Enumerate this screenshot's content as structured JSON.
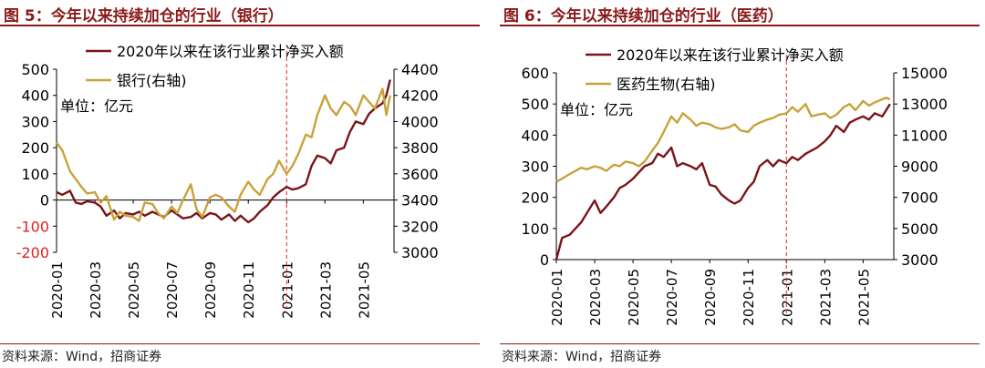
{
  "panels": [
    {
      "title": "图 5：今年以来持续加仓的行业（银行）",
      "source": "资料来源：Wind，招商证券",
      "unit_label": "单位：亿元"
    },
    {
      "title": "图 6：今年以来持续加仓的行业（医药）",
      "source": "资料来源：Wind，招商证券",
      "unit_label": "单位：亿元"
    }
  ],
  "colors": {
    "primary": "#7b1418",
    "secondary": "#c8a23a",
    "negative_tick": "#e02020",
    "marker": "#e02020",
    "title": "#8b1a1a"
  },
  "chart_data": [
    {
      "type": "line",
      "x_ticks": [
        "2020-01",
        "2020-03",
        "2020-05",
        "2020-07",
        "2020-09",
        "2020-11",
        "2021-01",
        "2021-03",
        "2021-05"
      ],
      "x_range": [
        0,
        17.6
      ],
      "marker_x": 12,
      "legend": {
        "placement": "top-left",
        "entries": [
          "2020年以来在该行业累计净买入额",
          "银行(右轴)"
        ]
      },
      "y_left": {
        "range": [
          -200,
          500
        ],
        "ticks": [
          -200,
          -100,
          0,
          100,
          200,
          300,
          400,
          500
        ]
      },
      "y_right": {
        "range": [
          3000,
          4400
        ],
        "ticks": [
          3000,
          3200,
          3400,
          3600,
          3800,
          4000,
          4200,
          4400
        ]
      },
      "series": [
        {
          "name": "2020年以来在该行业累计净买入额",
          "axis": "left",
          "x": [
            0,
            0.3,
            0.7,
            1.0,
            1.3,
            1.6,
            2.0,
            2.3,
            2.6,
            3.0,
            3.3,
            3.6,
            4.0,
            4.3,
            4.6,
            5.0,
            5.3,
            5.6,
            6.0,
            6.3,
            6.6,
            7.0,
            7.3,
            7.6,
            8.0,
            8.3,
            8.6,
            9.0,
            9.3,
            9.6,
            10.0,
            10.3,
            10.6,
            11.0,
            11.3,
            11.6,
            12.0,
            12.3,
            12.6,
            13.0,
            13.3,
            13.6,
            14.0,
            14.3,
            14.6,
            15.0,
            15.3,
            15.6,
            16.0,
            16.3,
            16.6,
            17.0,
            17.2,
            17.4
          ],
          "y": [
            30,
            20,
            35,
            -10,
            -15,
            -5,
            -10,
            -25,
            -60,
            -40,
            -70,
            -50,
            -55,
            -45,
            -60,
            -45,
            -55,
            -65,
            -40,
            -55,
            -70,
            -65,
            -50,
            -70,
            -50,
            -55,
            -75,
            -55,
            -80,
            -60,
            -85,
            -70,
            -45,
            -20,
            10,
            30,
            50,
            40,
            45,
            60,
            130,
            170,
            160,
            140,
            190,
            200,
            260,
            300,
            290,
            330,
            350,
            370,
            400,
            460
          ]
        },
        {
          "name": "银行(右轴)",
          "axis": "right",
          "x": [
            0,
            0.3,
            0.7,
            1.0,
            1.3,
            1.6,
            2.0,
            2.3,
            2.6,
            3.0,
            3.3,
            3.6,
            4.0,
            4.3,
            4.6,
            5.0,
            5.3,
            5.6,
            6.0,
            6.3,
            6.6,
            7.0,
            7.3,
            7.6,
            8.0,
            8.3,
            8.6,
            9.0,
            9.3,
            9.6,
            10.0,
            10.3,
            10.6,
            11.0,
            11.3,
            11.6,
            12.0,
            12.3,
            12.6,
            13.0,
            13.3,
            13.6,
            14.0,
            14.3,
            14.6,
            15.0,
            15.3,
            15.6,
            16.0,
            16.3,
            16.6,
            17.0,
            17.2,
            17.4
          ],
          "y": [
            3840,
            3780,
            3620,
            3560,
            3500,
            3450,
            3460,
            3380,
            3430,
            3250,
            3310,
            3280,
            3270,
            3240,
            3380,
            3370,
            3300,
            3260,
            3350,
            3300,
            3400,
            3520,
            3330,
            3270,
            3420,
            3440,
            3420,
            3350,
            3310,
            3440,
            3540,
            3480,
            3440,
            3560,
            3600,
            3700,
            3600,
            3660,
            3750,
            3900,
            3880,
            4050,
            4200,
            4100,
            4050,
            4150,
            4120,
            4050,
            4200,
            4150,
            4100,
            4250,
            4050,
            4200
          ]
        }
      ]
    },
    {
      "type": "line",
      "x_ticks": [
        "2020-01",
        "2020-03",
        "2020-05",
        "2020-07",
        "2020-09",
        "2020-11",
        "2021-01",
        "2021-03",
        "2021-05"
      ],
      "x_range": [
        0,
        17.6
      ],
      "marker_x": 12,
      "legend": {
        "placement": "top-left",
        "entries": [
          "2020年以来在该行业累计净买入额",
          "医药生物(右轴)"
        ]
      },
      "y_left": {
        "range": [
          0,
          600
        ],
        "ticks": [
          0,
          100,
          200,
          300,
          400,
          500,
          600
        ]
      },
      "y_right": {
        "range": [
          3000,
          15000
        ],
        "ticks": [
          3000,
          5000,
          7000,
          9000,
          11000,
          13000,
          15000
        ]
      },
      "series": [
        {
          "name": "2020年以来在该行业累计净买入额",
          "axis": "left",
          "x": [
            0,
            0.3,
            0.7,
            1.0,
            1.3,
            1.6,
            2.0,
            2.3,
            2.6,
            3.0,
            3.3,
            3.6,
            4.0,
            4.3,
            4.6,
            5.0,
            5.3,
            5.6,
            6.0,
            6.3,
            6.6,
            7.0,
            7.3,
            7.6,
            8.0,
            8.3,
            8.6,
            9.0,
            9.3,
            9.6,
            10.0,
            10.3,
            10.6,
            11.0,
            11.3,
            11.6,
            12.0,
            12.3,
            12.6,
            13.0,
            13.3,
            13.6,
            14.0,
            14.3,
            14.6,
            15.0,
            15.3,
            15.6,
            16.0,
            16.3,
            16.6,
            17.0,
            17.2,
            17.4
          ],
          "y": [
            0,
            70,
            80,
            100,
            120,
            150,
            190,
            150,
            170,
            200,
            230,
            240,
            260,
            280,
            300,
            310,
            340,
            330,
            360,
            300,
            310,
            300,
            290,
            310,
            240,
            235,
            210,
            190,
            180,
            190,
            230,
            250,
            300,
            320,
            300,
            320,
            310,
            330,
            320,
            340,
            350,
            360,
            380,
            400,
            430,
            410,
            440,
            450,
            460,
            450,
            470,
            460,
            480,
            500
          ]
        },
        {
          "name": "医药生物(右轴)",
          "axis": "right",
          "x": [
            0,
            0.3,
            0.7,
            1.0,
            1.3,
            1.6,
            2.0,
            2.3,
            2.6,
            3.0,
            3.3,
            3.6,
            4.0,
            4.3,
            4.6,
            5.0,
            5.3,
            5.6,
            6.0,
            6.3,
            6.6,
            7.0,
            7.3,
            7.6,
            8.0,
            8.3,
            8.6,
            9.0,
            9.3,
            9.6,
            10.0,
            10.3,
            10.6,
            11.0,
            11.3,
            11.6,
            12.0,
            12.3,
            12.6,
            13.0,
            13.3,
            13.6,
            14.0,
            14.3,
            14.6,
            15.0,
            15.3,
            15.6,
            16.0,
            16.3,
            16.6,
            17.0,
            17.2,
            17.4
          ],
          "y": [
            8000,
            8200,
            8500,
            8700,
            8900,
            8800,
            9000,
            8900,
            8700,
            9100,
            9000,
            9300,
            9200,
            9000,
            9300,
            10000,
            10500,
            11200,
            12200,
            11800,
            12400,
            12000,
            11600,
            11800,
            11700,
            11500,
            11400,
            11500,
            11700,
            11300,
            11200,
            11600,
            11800,
            12000,
            12100,
            12300,
            12400,
            12800,
            12500,
            13000,
            12200,
            12300,
            12400,
            12100,
            12300,
            12800,
            13000,
            12600,
            13200,
            12900,
            13100,
            13300,
            13400,
            13300
          ]
        }
      ]
    }
  ]
}
